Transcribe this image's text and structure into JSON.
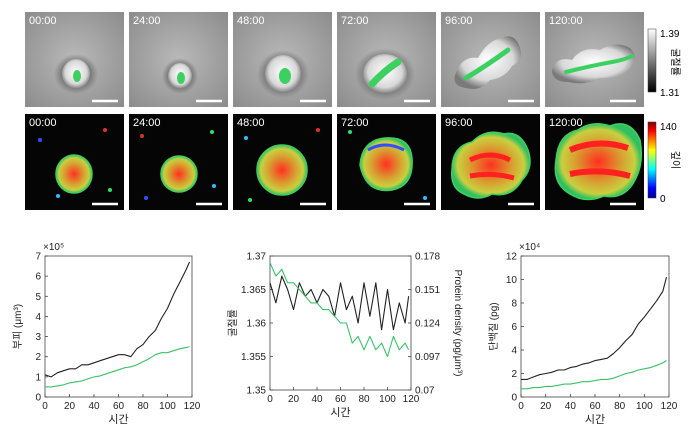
{
  "time_labels": [
    "00:00",
    "24:00",
    "48:00",
    "72:00",
    "96:00",
    "120:00"
  ],
  "colorbars": {
    "refractive": {
      "max": "1.39",
      "min": "1.31",
      "label": "굴절률"
    },
    "depth": {
      "max": "140",
      "min": "0",
      "label": "깊이"
    }
  },
  "colors": {
    "series_black": "#222222",
    "series_green": "#3cc06a"
  },
  "chart_data": [
    {
      "type": "line",
      "ylabel": "부피 (μm³)",
      "xlabel": "시간",
      "exponent": "×10⁵",
      "xlim": [
        0,
        120
      ],
      "ylim": [
        0,
        7
      ],
      "x_ticks": [
        "0",
        "20",
        "40",
        "60",
        "80",
        "100",
        "120"
      ],
      "y_ticks": [
        "0",
        "1",
        "2",
        "3",
        "4",
        "5",
        "6",
        "7"
      ],
      "x": [
        0,
        5,
        10,
        15,
        20,
        25,
        30,
        35,
        40,
        45,
        50,
        55,
        60,
        65,
        70,
        75,
        80,
        85,
        90,
        95,
        100,
        105,
        110,
        115,
        118
      ],
      "series": [
        {
          "color": "#222222",
          "values": [
            1.1,
            1.0,
            1.2,
            1.3,
            1.4,
            1.4,
            1.6,
            1.6,
            1.7,
            1.8,
            1.9,
            2.0,
            2.1,
            2.1,
            2.0,
            2.4,
            2.6,
            3.0,
            3.3,
            3.9,
            4.4,
            5.1,
            5.7,
            6.3,
            6.7
          ]
        },
        {
          "color": "#3cc06a",
          "values": [
            0.5,
            0.5,
            0.55,
            0.6,
            0.7,
            0.75,
            0.8,
            0.9,
            1.0,
            1.05,
            1.15,
            1.25,
            1.35,
            1.45,
            1.5,
            1.6,
            1.75,
            1.9,
            2.1,
            2.2,
            2.2,
            2.3,
            2.4,
            2.45,
            2.5
          ]
        }
      ]
    },
    {
      "type": "line",
      "ylabel": "굴절률",
      "ylabel_right": "Protein density (pg/μm³)",
      "xlabel": "시간",
      "xlim": [
        0,
        120
      ],
      "ylim": [
        1.35,
        1.37
      ],
      "x_ticks": [
        "0",
        "20",
        "40",
        "60",
        "80",
        "100",
        "120"
      ],
      "y_ticks": [
        "1.35",
        "1.355",
        "1.36",
        "1.365",
        "1.37"
      ],
      "y_ticks_right": [
        "0.07",
        "0.097",
        "0.124",
        "0.151",
        "0.178"
      ],
      "x": [
        0,
        5,
        10,
        15,
        20,
        25,
        30,
        35,
        40,
        45,
        50,
        55,
        60,
        65,
        70,
        75,
        80,
        85,
        90,
        95,
        100,
        105,
        110,
        115,
        118
      ],
      "series": [
        {
          "color": "#222222",
          "values": [
            1.366,
            1.363,
            1.367,
            1.365,
            1.362,
            1.366,
            1.364,
            1.365,
            1.363,
            1.365,
            1.364,
            1.361,
            1.366,
            1.362,
            1.364,
            1.36,
            1.366,
            1.361,
            1.366,
            1.359,
            1.365,
            1.359,
            1.363,
            1.36,
            1.364
          ]
        },
        {
          "color": "#3cc06a",
          "values": [
            1.369,
            1.367,
            1.368,
            1.366,
            1.366,
            1.365,
            1.364,
            1.363,
            1.363,
            1.362,
            1.362,
            1.361,
            1.36,
            1.36,
            1.357,
            1.358,
            1.356,
            1.358,
            1.356,
            1.357,
            1.355,
            1.358,
            1.356,
            1.357,
            1.356
          ]
        }
      ]
    },
    {
      "type": "line",
      "ylabel": "단백질 (pg)",
      "xlabel": "시간",
      "exponent": "×10⁴",
      "xlim": [
        0,
        120
      ],
      "ylim": [
        0,
        12
      ],
      "x_ticks": [
        "0",
        "20",
        "40",
        "60",
        "80",
        "100",
        "120"
      ],
      "y_ticks": [
        "0",
        "2",
        "4",
        "6",
        "8",
        "10",
        "12"
      ],
      "x": [
        0,
        5,
        10,
        15,
        20,
        25,
        30,
        35,
        40,
        45,
        50,
        55,
        60,
        65,
        70,
        75,
        80,
        85,
        90,
        95,
        100,
        105,
        110,
        115,
        118
      ],
      "series": [
        {
          "color": "#222222",
          "values": [
            1.5,
            1.5,
            1.7,
            1.9,
            2.0,
            2.1,
            2.3,
            2.3,
            2.5,
            2.6,
            2.8,
            2.9,
            3.1,
            3.2,
            3.3,
            3.7,
            4.2,
            4.8,
            5.3,
            6.2,
            6.8,
            7.5,
            8.2,
            9.0,
            10.2
          ]
        },
        {
          "color": "#3cc06a",
          "values": [
            0.7,
            0.7,
            0.8,
            0.8,
            0.9,
            0.9,
            1.0,
            1.1,
            1.1,
            1.2,
            1.3,
            1.3,
            1.4,
            1.5,
            1.5,
            1.6,
            1.8,
            2.0,
            2.1,
            2.3,
            2.4,
            2.5,
            2.7,
            2.9,
            3.1
          ]
        }
      ]
    }
  ]
}
